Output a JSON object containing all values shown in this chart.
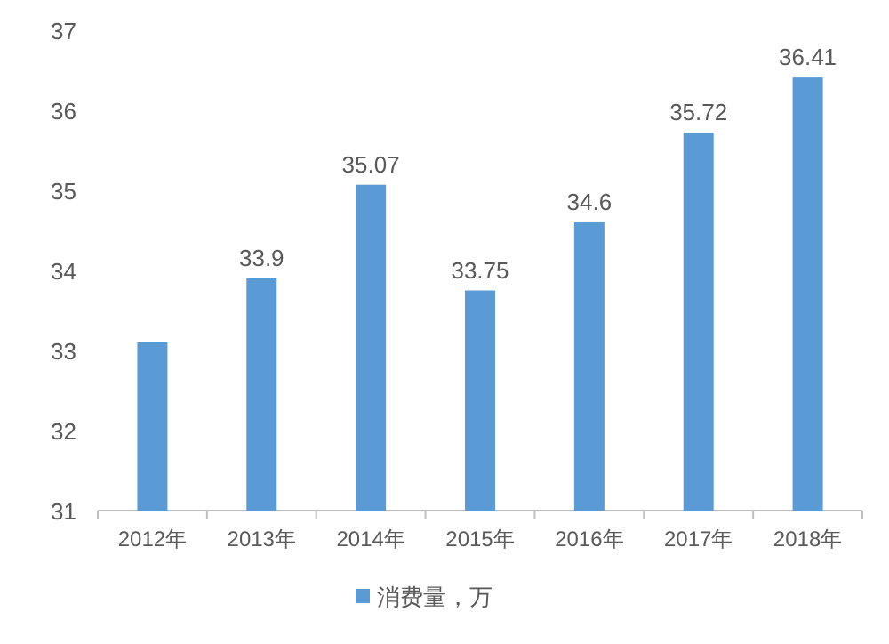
{
  "chart_data": {
    "type": "bar",
    "categories": [
      "2012年",
      "2013年",
      "2014年",
      "2015年",
      "2016年",
      "2017年",
      "2018年"
    ],
    "series": [
      {
        "name": "消费量，万",
        "color": "#5b9bd5",
        "values": [
          33.1,
          33.9,
          35.07,
          33.75,
          34.6,
          35.72,
          36.41
        ]
      }
    ],
    "value_labels": [
      null,
      "33.9",
      "35.07",
      "33.75",
      "34.6",
      "35.72",
      "36.41"
    ],
    "ylim": [
      31,
      37
    ],
    "yticks": [
      31,
      32,
      33,
      34,
      35,
      36,
      37
    ],
    "grid": false,
    "legend": "bottom"
  }
}
